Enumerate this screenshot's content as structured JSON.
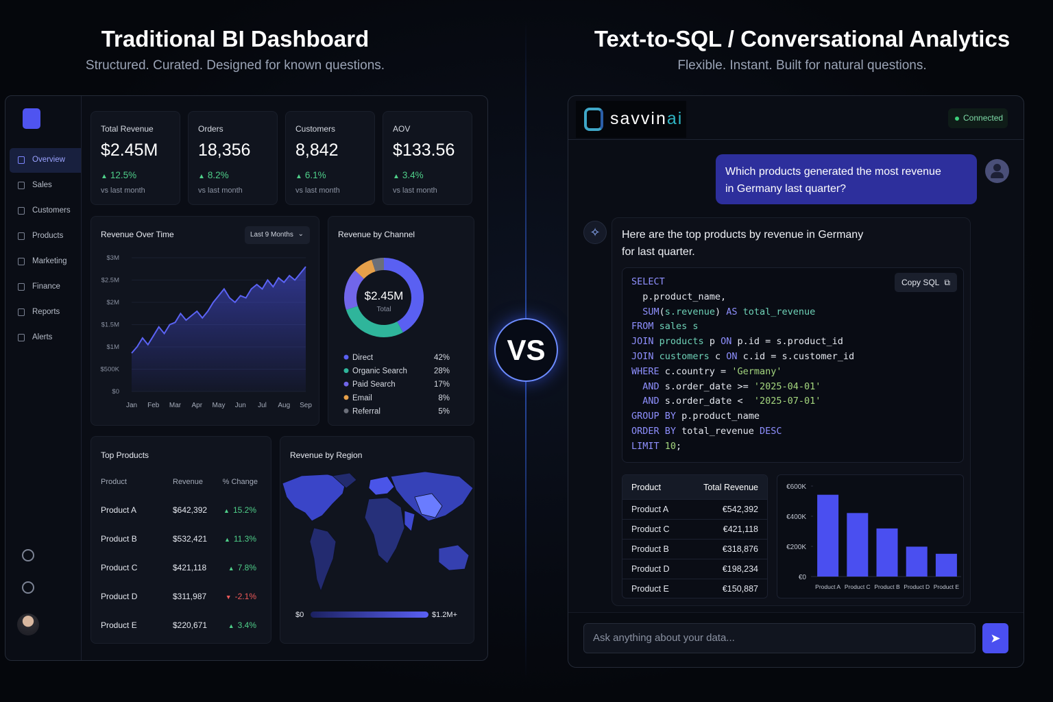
{
  "left_header": {
    "title": "Traditional BI Dashboard",
    "subtitle": "Structured. Curated. Designed for known questions."
  },
  "right_header": {
    "title": "Text-to-SQL / Conversational Analytics",
    "subtitle": "Flexible. Instant. Built for natural questions."
  },
  "vs": "VS",
  "sidebar": [
    "Overview",
    "Sales",
    "Customers",
    "Products",
    "Marketing",
    "Finance",
    "Reports",
    "Alerts"
  ],
  "kpis": [
    {
      "label": "Total Revenue",
      "value": "$2.45M",
      "change": "12.5%",
      "note": "vs last month"
    },
    {
      "label": "Orders",
      "value": "18,356",
      "change": "8.2%",
      "note": "vs last month"
    },
    {
      "label": "Customers",
      "value": "8,842",
      "change": "6.1%",
      "note": "vs last month"
    },
    {
      "label": "AOV",
      "value": "$133.56",
      "change": "3.4%",
      "note": "vs last month"
    }
  ],
  "chart_data": [
    {
      "type": "line",
      "title": "Revenue Over Time",
      "range_label": "Last 9 Months",
      "color": "#5b63f5",
      "x": [
        0,
        0.25,
        0.5,
        0.75,
        1,
        1.25,
        1.5,
        1.75,
        2,
        2.25,
        2.5,
        2.75,
        3,
        3.25,
        3.5,
        3.75,
        4,
        4.25,
        4.5,
        4.75,
        5,
        5.25,
        5.5,
        5.75,
        6,
        6.25,
        6.5,
        6.75,
        7,
        7.25,
        7.5,
        7.75,
        8
      ],
      "values": [
        0.86,
        1.0,
        1.2,
        1.05,
        1.25,
        1.45,
        1.3,
        1.5,
        1.55,
        1.75,
        1.6,
        1.7,
        1.8,
        1.65,
        1.8,
        2.0,
        2.15,
        2.3,
        2.1,
        2.0,
        2.15,
        2.1,
        2.3,
        2.4,
        2.3,
        2.5,
        2.35,
        2.55,
        2.45,
        2.6,
        2.5,
        2.65,
        2.8
      ],
      "xlim": [
        0,
        8
      ],
      "xticks": [
        {
          "value": 0,
          "label": "Jan"
        },
        {
          "value": 1,
          "label": "Feb"
        },
        {
          "value": 2,
          "label": "Mar"
        },
        {
          "value": 3,
          "label": "Apr"
        },
        {
          "value": 4,
          "label": "May"
        },
        {
          "value": 5,
          "label": "Jun"
        },
        {
          "value": 6,
          "label": "Jul"
        },
        {
          "value": 7,
          "label": "Aug"
        },
        {
          "value": 8,
          "label": "Sep"
        }
      ],
      "ylim": [
        0,
        3
      ],
      "yticks": [
        {
          "value": 0,
          "label": "$0"
        },
        {
          "value": 0.5,
          "label": "$500K"
        },
        {
          "value": 1,
          "label": "$1M"
        },
        {
          "value": 1.5,
          "label": "$1.5M"
        },
        {
          "value": 2,
          "label": "$2M"
        },
        {
          "value": 2.5,
          "label": "$2.5M"
        },
        {
          "value": 3,
          "label": "$3M"
        }
      ]
    },
    {
      "type": "pie",
      "title": "Revenue by Channel",
      "center_value": "$2.45M",
      "center_label": "Total",
      "categories": [
        "Direct",
        "Organic Search",
        "Paid Search",
        "Email",
        "Referral"
      ],
      "values": [
        42,
        28,
        17,
        8,
        5
      ],
      "value_labels": [
        "42%",
        "28%",
        "17%",
        "8%",
        "5%"
      ],
      "colors": [
        "#5a60f2",
        "#2fb59b",
        "#7166ea",
        "#e6a04a",
        "#6b6f7a"
      ]
    },
    {
      "type": "bar",
      "color": "#4a4ff0",
      "categories": [
        "Product A",
        "Product C",
        "Product B",
        "Product D",
        "Product E"
      ],
      "values": [
        542392,
        421118,
        318876,
        198234,
        150887
      ],
      "ylim": [
        0,
        600000
      ],
      "yticks": [
        {
          "value": 0,
          "label": "€0"
        },
        {
          "value": 200000,
          "label": "€200K"
        },
        {
          "value": 400000,
          "label": "€400K"
        },
        {
          "value": 600000,
          "label": "€600K"
        }
      ]
    }
  ],
  "top_products": {
    "title": "Top Products",
    "columns": [
      "Product",
      "Revenue",
      "% Change"
    ],
    "rows": [
      [
        "Product A",
        "$642,392",
        "15.2%"
      ],
      [
        "Product B",
        "$532,421",
        "11.3%"
      ],
      [
        "Product C",
        "$421,118",
        "7.8%"
      ],
      [
        "Product D",
        "$311,987",
        "-2.1%"
      ],
      [
        "Product E",
        "$220,671",
        "3.4%"
      ]
    ]
  },
  "region": {
    "title": "Revenue by Region",
    "legend_min": "$0",
    "legend_max": "$1.2M+"
  },
  "chat": {
    "brand": [
      "savvin",
      "ai"
    ],
    "status": "Connected",
    "question": "Which products generated the most revenue in Germany last quarter?",
    "answer": "Here are the top products by revenue in Germany for last quarter.",
    "copy_button": "Copy SQL",
    "sql": [
      [
        {
          "text": "SELECT",
          "color": "#8f90ff"
        }
      ],
      [
        "  p.product_name,"
      ],
      [
        "  ",
        {
          "text": "SUM",
          "color": "#8f90ff"
        },
        "(",
        {
          "text": "s.revenue",
          "color": "#6fd3b8"
        },
        ") ",
        {
          "text": "AS",
          "color": "#8f90ff"
        },
        " ",
        {
          "text": "total_revenue",
          "color": "#6fd3b8"
        }
      ],
      [
        {
          "text": "FROM",
          "color": "#8f90ff"
        },
        " ",
        {
          "text": "sales s",
          "color": "#6fd3b8"
        }
      ],
      [
        {
          "text": "JOIN",
          "color": "#8f90ff"
        },
        " ",
        {
          "text": "products",
          "color": "#6fd3b8"
        },
        " p ",
        {
          "text": "ON",
          "color": "#8f90ff"
        },
        " p.id = s.product_id"
      ],
      [
        {
          "text": "JOIN",
          "color": "#8f90ff"
        },
        " ",
        {
          "text": "customers",
          "color": "#6fd3b8"
        },
        " c ",
        {
          "text": "ON",
          "color": "#8f90ff"
        },
        " c.id = s.customer_id"
      ],
      [
        {
          "text": "WHERE",
          "color": "#8f90ff"
        },
        " c.country = ",
        {
          "text": "'Germany'",
          "color": "#a5d77f"
        }
      ],
      [
        "  ",
        {
          "text": "AND",
          "color": "#8f90ff"
        },
        " s.order_date >= ",
        {
          "text": "'2025-04-01'",
          "color": "#a5d77f"
        }
      ],
      [
        "  ",
        {
          "text": "AND",
          "color": "#8f90ff"
        },
        " s.order_date <  ",
        {
          "text": "'2025-07-01'",
          "color": "#a5d77f"
        }
      ],
      [
        {
          "text": "GROUP BY",
          "color": "#8f90ff"
        },
        " p.product_name"
      ],
      [
        {
          "text": "ORDER BY",
          "color": "#8f90ff"
        },
        " total_revenue ",
        {
          "text": "DESC",
          "color": "#8f90ff"
        }
      ],
      [
        {
          "text": "LIMIT",
          "color": "#8f90ff"
        },
        " ",
        {
          "text": "10",
          "color": "#a5d77f"
        },
        ";"
      ]
    ],
    "result_table": {
      "columns": [
        "Product",
        "Total Revenue"
      ],
      "rows": [
        [
          "Product A",
          "€542,392"
        ],
        [
          "Product C",
          "€421,118"
        ],
        [
          "Product B",
          "€318,876"
        ],
        [
          "Product D",
          "€198,234"
        ],
        [
          "Product E",
          "€150,887"
        ]
      ]
    },
    "input_placeholder": "Ask anything about your data..."
  }
}
